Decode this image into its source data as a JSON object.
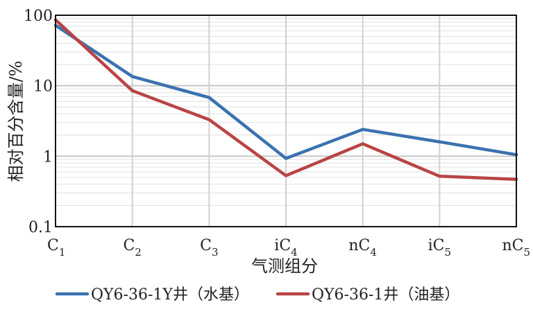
{
  "chart_data": {
    "type": "line",
    "xlabel": "气测组分",
    "ylabel": "相对百分含量/%",
    "y_scale": "log",
    "ylim": [
      0.1,
      100
    ],
    "y_ticks": [
      {
        "value": 0.1,
        "label": "0.1"
      },
      {
        "value": 1,
        "label": "1"
      },
      {
        "value": 10,
        "label": "10"
      },
      {
        "value": 100,
        "label": "100"
      }
    ],
    "categories": [
      {
        "base": "C",
        "sub": "1"
      },
      {
        "base": "C",
        "sub": "2"
      },
      {
        "base": "C",
        "sub": "3"
      },
      {
        "base": "iC",
        "sub": "4"
      },
      {
        "base": "nC",
        "sub": "4"
      },
      {
        "base": "iC",
        "sub": "5"
      },
      {
        "base": "nC",
        "sub": "5"
      }
    ],
    "grid": true,
    "legend_position": "bottom",
    "series": [
      {
        "name": "QY6-36-1Y井（水基）",
        "color": "#3a72b0",
        "values": [
          72,
          13.5,
          6.8,
          0.93,
          2.4,
          1.6,
          1.05
        ]
      },
      {
        "name": "QY6-36-1井（油基）",
        "color": "#b94444",
        "values": [
          86,
          8.5,
          3.3,
          0.53,
          1.5,
          0.52,
          0.47
        ]
      }
    ]
  }
}
